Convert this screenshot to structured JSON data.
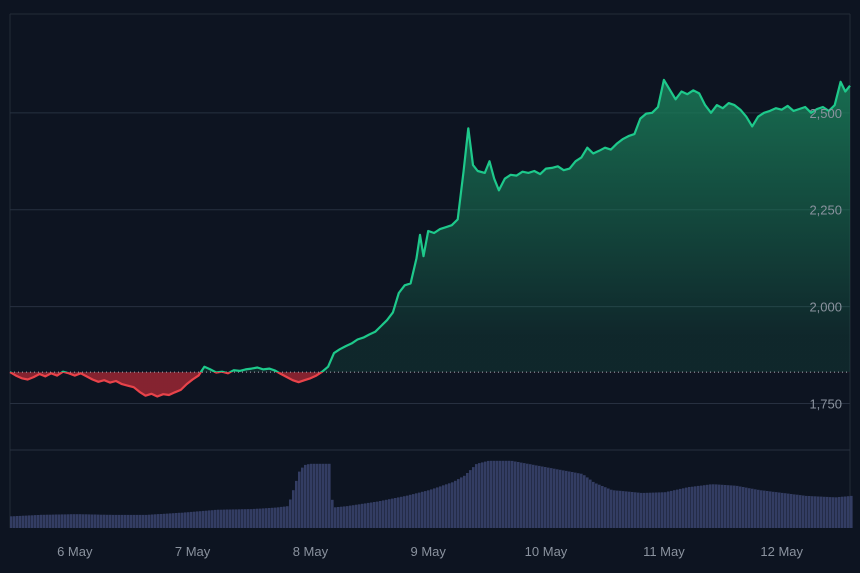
{
  "chart_data": {
    "type": "area",
    "subtype": "price-baseline-with-volume",
    "x_tick_labels": [
      "6 May",
      "7 May",
      "8 May",
      "9 May",
      "10 May",
      "11 May",
      "12 May"
    ],
    "y_tick_labels": [
      "2,500",
      "2,250",
      "2,000",
      "1,750"
    ],
    "y_ticks": [
      2500,
      2250,
      2000,
      1750
    ],
    "y_axis_position": "right",
    "ylim": [
      1630,
      2755
    ],
    "xlim": [
      -0.55,
      6.58
    ],
    "baseline": 1831,
    "grid": "horizontal",
    "colors": {
      "background": "#0d1421",
      "up_line": "#1ec98b",
      "down_line": "#e8434a",
      "up_fill": "#1a7f5a",
      "down_fill": "#8b2431",
      "volume": "#333d63",
      "grid": "#273040",
      "baseline": "#a9afb8",
      "tick_text": "#8a929e"
    },
    "price_series": [
      [
        -0.55,
        1831
      ],
      [
        -0.5,
        1822
      ],
      [
        -0.45,
        1815
      ],
      [
        -0.4,
        1812
      ],
      [
        -0.35,
        1818
      ],
      [
        -0.3,
        1826
      ],
      [
        -0.25,
        1820
      ],
      [
        -0.2,
        1828
      ],
      [
        -0.15,
        1822
      ],
      [
        -0.1,
        1832
      ],
      [
        -0.05,
        1828
      ],
      [
        0.0,
        1822
      ],
      [
        0.05,
        1828
      ],
      [
        0.1,
        1820
      ],
      [
        0.15,
        1812
      ],
      [
        0.2,
        1806
      ],
      [
        0.25,
        1810
      ],
      [
        0.3,
        1804
      ],
      [
        0.35,
        1808
      ],
      [
        0.4,
        1800
      ],
      [
        0.45,
        1796
      ],
      [
        0.5,
        1792
      ],
      [
        0.55,
        1780
      ],
      [
        0.6,
        1770
      ],
      [
        0.65,
        1775
      ],
      [
        0.7,
        1768
      ],
      [
        0.75,
        1774
      ],
      [
        0.8,
        1772
      ],
      [
        0.85,
        1779
      ],
      [
        0.9,
        1785
      ],
      [
        0.95,
        1800
      ],
      [
        1.0,
        1812
      ],
      [
        1.05,
        1822
      ],
      [
        1.1,
        1845
      ],
      [
        1.15,
        1838
      ],
      [
        1.2,
        1830
      ],
      [
        1.25,
        1832
      ],
      [
        1.3,
        1828
      ],
      [
        1.35,
        1836
      ],
      [
        1.4,
        1834
      ],
      [
        1.45,
        1838
      ],
      [
        1.5,
        1840
      ],
      [
        1.55,
        1843
      ],
      [
        1.6,
        1838
      ],
      [
        1.65,
        1840
      ],
      [
        1.7,
        1835
      ],
      [
        1.75,
        1826
      ],
      [
        1.8,
        1818
      ],
      [
        1.85,
        1810
      ],
      [
        1.9,
        1805
      ],
      [
        1.95,
        1810
      ],
      [
        2.0,
        1815
      ],
      [
        2.05,
        1822
      ],
      [
        2.1,
        1832
      ],
      [
        2.15,
        1845
      ],
      [
        2.2,
        1880
      ],
      [
        2.25,
        1890
      ],
      [
        2.3,
        1898
      ],
      [
        2.35,
        1905
      ],
      [
        2.4,
        1915
      ],
      [
        2.45,
        1920
      ],
      [
        2.5,
        1928
      ],
      [
        2.55,
        1935
      ],
      [
        2.6,
        1950
      ],
      [
        2.65,
        1965
      ],
      [
        2.7,
        1985
      ],
      [
        2.75,
        2035
      ],
      [
        2.8,
        2055
      ],
      [
        2.85,
        2060
      ],
      [
        2.9,
        2125
      ],
      [
        2.93,
        2185
      ],
      [
        2.96,
        2130
      ],
      [
        3.0,
        2195
      ],
      [
        3.05,
        2190
      ],
      [
        3.1,
        2200
      ],
      [
        3.15,
        2205
      ],
      [
        3.2,
        2210
      ],
      [
        3.25,
        2225
      ],
      [
        3.3,
        2350
      ],
      [
        3.34,
        2460
      ],
      [
        3.38,
        2365
      ],
      [
        3.42,
        2350
      ],
      [
        3.48,
        2345
      ],
      [
        3.52,
        2375
      ],
      [
        3.56,
        2330
      ],
      [
        3.6,
        2300
      ],
      [
        3.65,
        2330
      ],
      [
        3.7,
        2340
      ],
      [
        3.75,
        2338
      ],
      [
        3.8,
        2348
      ],
      [
        3.85,
        2345
      ],
      [
        3.9,
        2350
      ],
      [
        3.95,
        2342
      ],
      [
        4.0,
        2356
      ],
      [
        4.05,
        2358
      ],
      [
        4.1,
        2362
      ],
      [
        4.15,
        2352
      ],
      [
        4.2,
        2356
      ],
      [
        4.25,
        2375
      ],
      [
        4.3,
        2385
      ],
      [
        4.35,
        2410
      ],
      [
        4.4,
        2395
      ],
      [
        4.45,
        2402
      ],
      [
        4.5,
        2410
      ],
      [
        4.55,
        2405
      ],
      [
        4.6,
        2420
      ],
      [
        4.65,
        2432
      ],
      [
        4.7,
        2440
      ],
      [
        4.75,
        2445
      ],
      [
        4.8,
        2485
      ],
      [
        4.85,
        2498
      ],
      [
        4.9,
        2500
      ],
      [
        4.95,
        2515
      ],
      [
        5.0,
        2585
      ],
      [
        5.05,
        2560
      ],
      [
        5.1,
        2535
      ],
      [
        5.15,
        2555
      ],
      [
        5.2,
        2548
      ],
      [
        5.25,
        2558
      ],
      [
        5.3,
        2550
      ],
      [
        5.35,
        2520
      ],
      [
        5.4,
        2500
      ],
      [
        5.45,
        2520
      ],
      [
        5.5,
        2512
      ],
      [
        5.55,
        2525
      ],
      [
        5.6,
        2520
      ],
      [
        5.65,
        2508
      ],
      [
        5.7,
        2490
      ],
      [
        5.75,
        2465
      ],
      [
        5.8,
        2490
      ],
      [
        5.85,
        2500
      ],
      [
        5.9,
        2505
      ],
      [
        5.95,
        2512
      ],
      [
        6.0,
        2508
      ],
      [
        6.05,
        2518
      ],
      [
        6.1,
        2505
      ],
      [
        6.15,
        2510
      ],
      [
        6.2,
        2515
      ],
      [
        6.25,
        2500
      ],
      [
        6.3,
        2510
      ],
      [
        6.35,
        2515
      ],
      [
        6.4,
        2505
      ],
      [
        6.45,
        2520
      ],
      [
        6.5,
        2580
      ],
      [
        6.54,
        2555
      ],
      [
        6.58,
        2570
      ]
    ],
    "volume_series": [
      [
        -0.55,
        0.16
      ],
      [
        -0.3,
        0.18
      ],
      [
        0.0,
        0.19
      ],
      [
        0.3,
        0.18
      ],
      [
        0.6,
        0.18
      ],
      [
        0.9,
        0.21
      ],
      [
        1.2,
        0.25
      ],
      [
        1.5,
        0.26
      ],
      [
        1.7,
        0.28
      ],
      [
        1.8,
        0.3
      ],
      [
        1.85,
        0.55
      ],
      [
        1.9,
        0.8
      ],
      [
        1.95,
        0.87
      ],
      [
        2.0,
        0.88
      ],
      [
        2.15,
        0.88
      ],
      [
        2.18,
        0.28
      ],
      [
        2.3,
        0.3
      ],
      [
        2.55,
        0.36
      ],
      [
        2.8,
        0.44
      ],
      [
        3.0,
        0.52
      ],
      [
        3.2,
        0.63
      ],
      [
        3.3,
        0.72
      ],
      [
        3.4,
        0.88
      ],
      [
        3.5,
        0.92
      ],
      [
        3.7,
        0.92
      ],
      [
        3.9,
        0.86
      ],
      [
        4.1,
        0.8
      ],
      [
        4.3,
        0.74
      ],
      [
        4.4,
        0.62
      ],
      [
        4.55,
        0.52
      ],
      [
        4.8,
        0.48
      ],
      [
        5.0,
        0.49
      ],
      [
        5.2,
        0.56
      ],
      [
        5.4,
        0.6
      ],
      [
        5.6,
        0.58
      ],
      [
        5.8,
        0.52
      ],
      [
        6.0,
        0.48
      ],
      [
        6.2,
        0.44
      ],
      [
        6.45,
        0.42
      ],
      [
        6.58,
        0.44
      ]
    ]
  }
}
